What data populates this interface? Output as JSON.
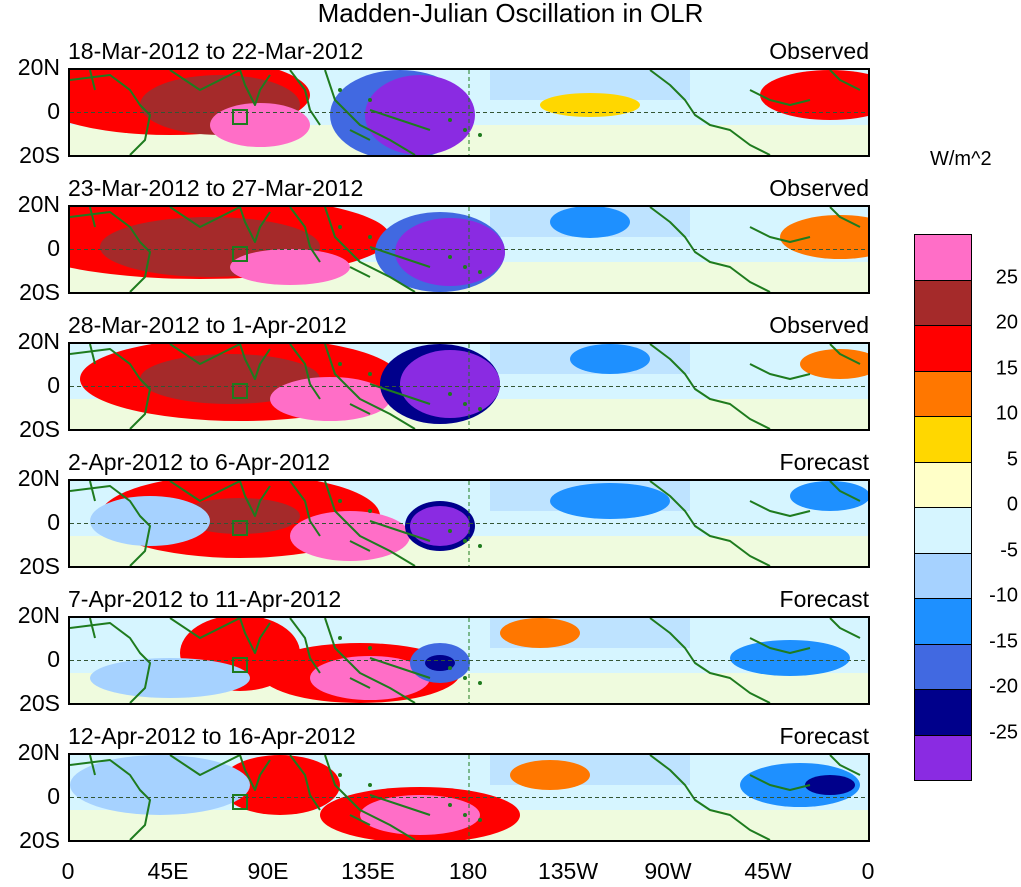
{
  "title": "Madden-Julian Oscillation in OLR",
  "units": "W/m^2",
  "y_labels": [
    "20N",
    "0",
    "20S"
  ],
  "x_labels": [
    "0",
    "45E",
    "90E",
    "135E",
    "180",
    "135W",
    "90W",
    "45W",
    "0"
  ],
  "panels": [
    {
      "period": "18-Mar-2012 to 22-Mar-2012",
      "kind": "Observed"
    },
    {
      "period": "23-Mar-2012 to 27-Mar-2012",
      "kind": "Observed"
    },
    {
      "period": "28-Mar-2012 to 1-Apr-2012",
      "kind": "Observed"
    },
    {
      "period": "2-Apr-2012 to 6-Apr-2012",
      "kind": "Forecast"
    },
    {
      "period": "7-Apr-2012 to 11-Apr-2012",
      "kind": "Forecast"
    },
    {
      "period": "12-Apr-2012 to 16-Apr-2012",
      "kind": "Forecast"
    }
  ],
  "colorbar": {
    "colors": [
      "#ff6ec7",
      "#a52a2a",
      "#ff0000",
      "#ff7700",
      "#ffd700",
      "#ffffc8",
      "#d6f5ff",
      "#a6d2ff",
      "#1e90ff",
      "#4169e1",
      "#00008b",
      "#8a2be2"
    ],
    "labels": [
      "25",
      "20",
      "15",
      "10",
      "5",
      "0",
      "-5",
      "-10",
      "-15",
      "-20",
      "-25"
    ]
  },
  "map_colors": {
    "coast": "#1e7b1e",
    "ocean_bg": "#d6f5ff"
  }
}
